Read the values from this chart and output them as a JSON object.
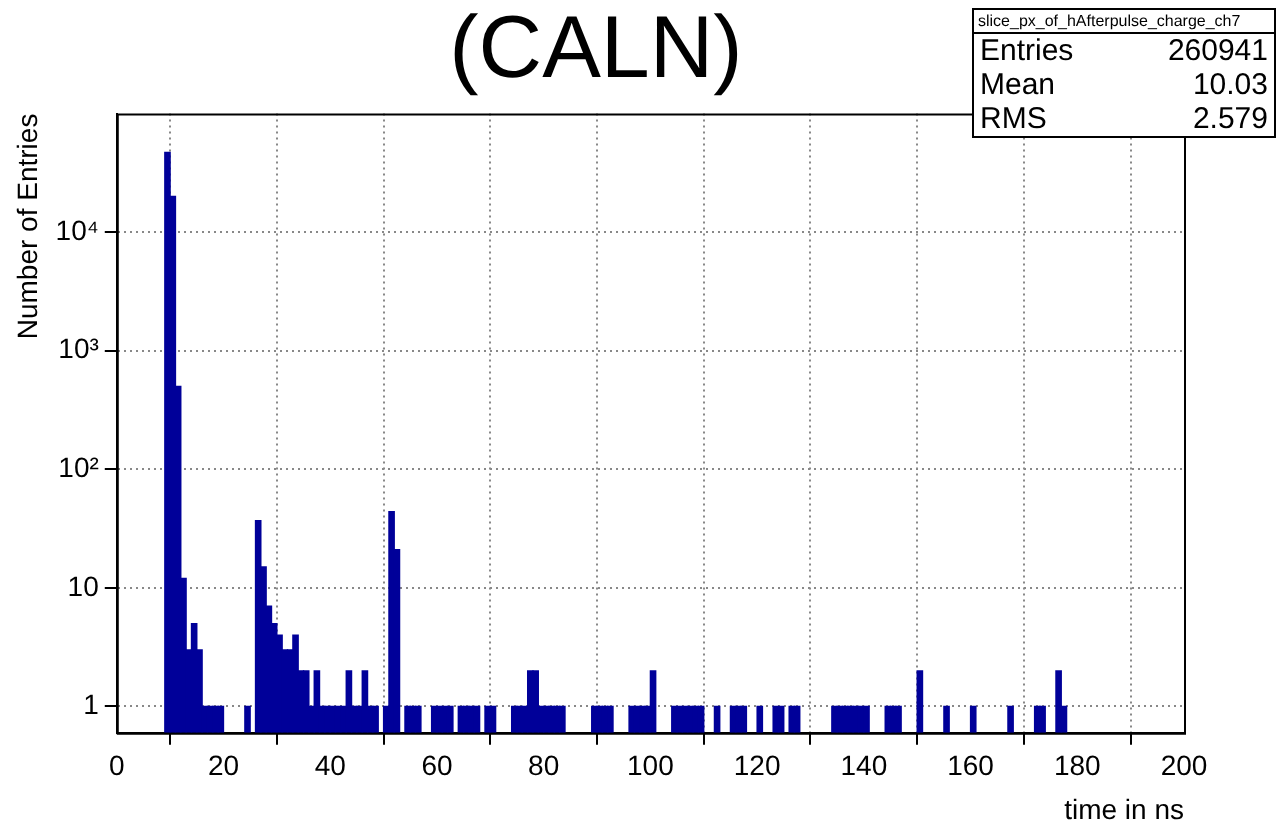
{
  "chart_data": {
    "type": "histogram",
    "title": "(CALN)",
    "xlabel": "time in ns",
    "ylabel": "Number of Entries",
    "annotations": [
      "slice_px_of_hAfterpulse_charge_ch7",
      "Entries 260941",
      "Mean 10.03",
      "RMS 2.579"
    ],
    "bins": [
      0,
      1,
      2,
      3,
      4,
      5,
      6,
      7,
      8,
      9,
      10,
      11,
      12,
      13,
      14,
      15,
      16,
      17,
      18,
      19,
      20,
      21,
      22,
      23,
      24,
      25,
      26,
      27,
      28,
      29,
      30,
      31,
      32,
      33,
      34,
      35,
      36,
      37,
      38,
      39,
      40,
      41,
      42,
      43,
      44,
      45,
      46,
      47,
      48,
      49,
      50,
      51,
      52,
      53,
      54,
      55,
      56,
      57,
      58,
      59,
      60,
      61,
      62,
      63,
      64,
      65,
      66,
      67,
      68,
      69,
      70,
      71,
      72,
      73,
      74,
      75,
      76,
      77,
      78,
      79,
      80,
      81,
      82,
      83,
      84,
      85,
      86,
      87,
      88,
      89,
      90,
      91,
      92,
      93,
      94,
      95,
      96,
      97,
      98,
      99,
      100,
      101,
      102,
      103,
      104,
      105,
      106,
      107,
      108,
      109,
      110,
      111,
      112,
      113,
      114,
      115,
      116,
      117,
      118,
      119,
      120,
      121,
      122,
      123,
      124,
      125,
      126,
      127,
      128,
      129,
      130,
      131,
      132,
      133,
      134,
      135,
      136,
      137,
      138,
      139,
      140,
      141,
      142,
      143,
      144,
      145,
      146,
      147,
      148,
      149,
      150,
      151,
      152,
      153,
      154,
      155,
      156,
      157,
      158,
      159,
      160,
      161,
      162,
      163,
      164,
      165,
      166,
      167,
      168,
      169,
      170,
      171,
      172,
      173,
      174,
      175,
      176,
      177,
      178,
      179,
      180,
      181,
      182,
      183,
      184,
      185,
      186,
      187,
      188,
      189,
      190,
      191,
      192,
      193,
      194,
      195,
      196,
      197,
      198,
      199,
      200
    ],
    "values": [
      null,
      null,
      null,
      null,
      null,
      null,
      null,
      null,
      null,
      47000,
      20000,
      500,
      12,
      3,
      5,
      3,
      1,
      1,
      1,
      1,
      null,
      null,
      null,
      null,
      1,
      null,
      37,
      15,
      7,
      5,
      4,
      3,
      3,
      4,
      2,
      2,
      1,
      2,
      1,
      1,
      1,
      1,
      1,
      2,
      1,
      1,
      2,
      1,
      1,
      null,
      1,
      44,
      21,
      null,
      1,
      1,
      1,
      null,
      null,
      1,
      1,
      1,
      1,
      null,
      1,
      1,
      1,
      1,
      null,
      1,
      1,
      null,
      null,
      null,
      1,
      1,
      1,
      2,
      2,
      1,
      1,
      1,
      1,
      1,
      null,
      null,
      null,
      null,
      null,
      1,
      1,
      1,
      1,
      null,
      null,
      null,
      1,
      1,
      1,
      1,
      2,
      null,
      null,
      null,
      1,
      1,
      1,
      1,
      1,
      1,
      null,
      null,
      1,
      null,
      null,
      1,
      1,
      1,
      null,
      null,
      1,
      null,
      null,
      1,
      1,
      null,
      1,
      1,
      null,
      null,
      null,
      null,
      null,
      null,
      1,
      1,
      1,
      1,
      1,
      1,
      1,
      null,
      null,
      null,
      1,
      1,
      1,
      null,
      null,
      null,
      2,
      null,
      null,
      null,
      null,
      1,
      null,
      null,
      null,
      null,
      1,
      null,
      null,
      null,
      null,
      null,
      null,
      1,
      null,
      null,
      null,
      null,
      1,
      1,
      null,
      null,
      2,
      1,
      null,
      null,
      null,
      null,
      null,
      null,
      null,
      null,
      null,
      null,
      null,
      null,
      null,
      null,
      null,
      null,
      null,
      null,
      null,
      null,
      null,
      null
    ],
    "color": "#000099",
    "xlim": [
      0,
      200
    ],
    "xticks": [
      0,
      20,
      40,
      60,
      80,
      100,
      120,
      140,
      160,
      180,
      200
    ],
    "ylim": [
      0.6,
      100000
    ],
    "yticks": [
      1,
      10,
      {
        "value": 100,
        "label": "10²"
      },
      {
        "value": 1000,
        "label": "10³"
      },
      {
        "value": 10000,
        "label": "10⁴"
      }
    ],
    "log": true,
    "grid": true,
    "legend": false
  }
}
